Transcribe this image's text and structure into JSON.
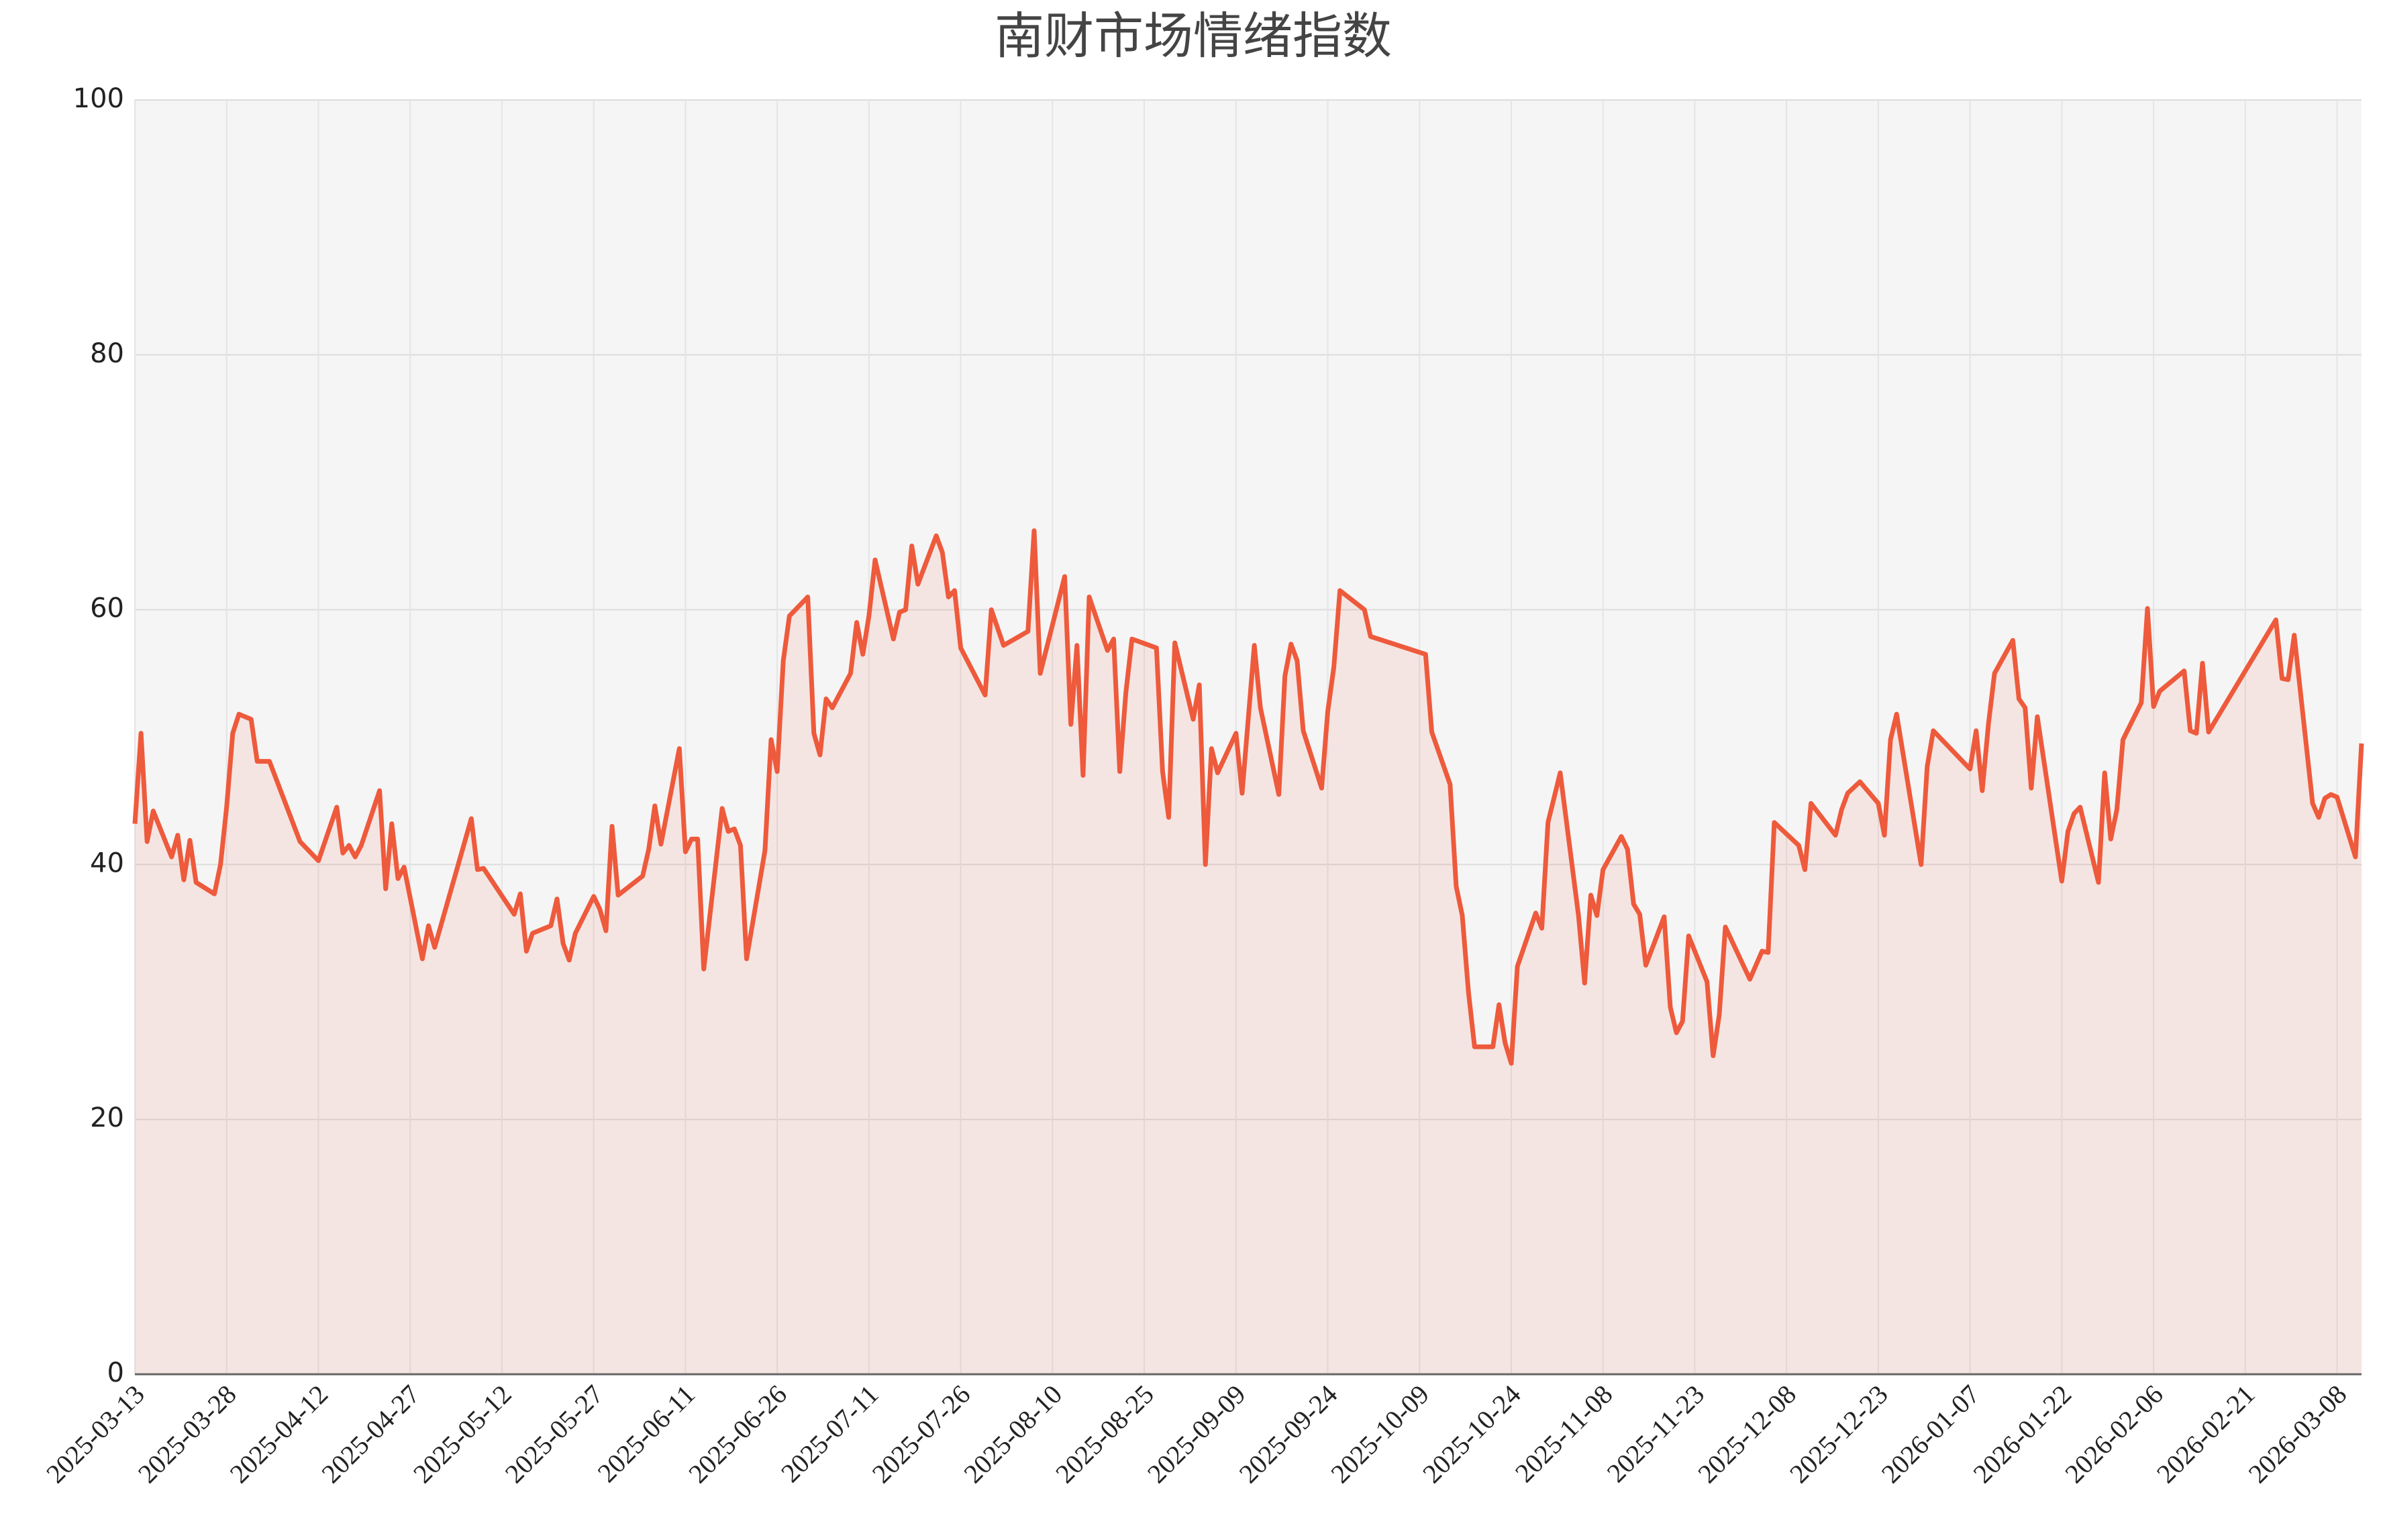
{
  "chart_data": {
    "type": "line",
    "title": "南财市场情绪指数",
    "x": [
      "2025-03-13",
      "2025-03-14",
      "2025-03-15",
      "2025-03-16",
      "2025-03-19",
      "2025-03-20",
      "2025-03-21",
      "2025-03-22",
      "2025-03-23",
      "2025-03-26",
      "2025-03-27",
      "2025-03-28",
      "2025-03-29",
      "2025-03-30",
      "2025-04-01",
      "2025-04-02",
      "2025-04-04",
      "2025-04-09",
      "2025-04-12",
      "2025-04-15",
      "2025-04-16",
      "2025-04-17",
      "2025-04-18",
      "2025-04-19",
      "2025-04-22",
      "2025-04-23",
      "2025-04-24",
      "2025-04-25",
      "2025-04-26",
      "2025-04-29",
      "2025-04-30",
      "2025-05-01",
      "2025-05-07",
      "2025-05-08",
      "2025-05-09",
      "2025-05-14",
      "2025-05-15",
      "2025-05-16",
      "2025-05-17",
      "2025-05-20",
      "2025-05-21",
      "2025-05-22",
      "2025-05-23",
      "2025-05-24",
      "2025-05-27",
      "2025-05-28",
      "2025-05-29",
      "2025-05-30",
      "2025-05-31",
      "2025-06-04",
      "2025-06-05",
      "2025-06-06",
      "2025-06-07",
      "2025-06-10",
      "2025-06-11",
      "2025-06-12",
      "2025-06-13",
      "2025-06-14",
      "2025-06-17",
      "2025-06-18",
      "2025-06-19",
      "2025-06-20",
      "2025-06-21",
      "2025-06-24",
      "2025-06-25",
      "2025-06-26",
      "2025-06-27",
      "2025-06-28",
      "2025-07-01",
      "2025-07-02",
      "2025-07-03",
      "2025-07-04",
      "2025-07-05",
      "2025-07-08",
      "2025-07-09",
      "2025-07-10",
      "2025-07-11",
      "2025-07-12",
      "2025-07-15",
      "2025-07-16",
      "2025-07-17",
      "2025-07-18",
      "2025-07-19",
      "2025-07-22",
      "2025-07-23",
      "2025-07-24",
      "2025-07-25",
      "2025-07-26",
      "2025-07-30",
      "2025-07-31",
      "2025-08-02",
      "2025-08-06",
      "2025-08-07",
      "2025-08-08",
      "2025-08-12",
      "2025-08-13",
      "2025-08-14",
      "2025-08-15",
      "2025-08-16",
      "2025-08-19",
      "2025-08-20",
      "2025-08-21",
      "2025-08-22",
      "2025-08-23",
      "2025-08-27",
      "2025-08-28",
      "2025-08-29",
      "2025-08-30",
      "2025-09-02",
      "2025-09-03",
      "2025-09-04",
      "2025-09-05",
      "2025-09-06",
      "2025-09-09",
      "2025-09-10",
      "2025-09-12",
      "2025-09-13",
      "2025-09-16",
      "2025-09-17",
      "2025-09-18",
      "2025-09-19",
      "2025-09-20",
      "2025-09-23",
      "2025-09-24",
      "2025-09-25",
      "2025-09-26",
      "2025-09-30",
      "2025-10-01",
      "2025-10-10",
      "2025-10-11",
      "2025-10-14",
      "2025-10-15",
      "2025-10-16",
      "2025-10-17",
      "2025-10-18",
      "2025-10-21",
      "2025-10-22",
      "2025-10-23",
      "2025-10-24",
      "2025-10-25",
      "2025-10-28",
      "2025-10-29",
      "2025-10-30",
      "2025-11-01",
      "2025-11-04",
      "2025-11-05",
      "2025-11-06",
      "2025-11-07",
      "2025-11-08",
      "2025-11-11",
      "2025-11-12",
      "2025-11-13",
      "2025-11-14",
      "2025-11-15",
      "2025-11-18",
      "2025-11-19",
      "2025-11-20",
      "2025-11-21",
      "2025-11-22",
      "2025-11-25",
      "2025-11-26",
      "2025-11-27",
      "2025-11-28",
      "2025-12-02",
      "2025-12-04",
      "2025-12-05",
      "2025-12-06",
      "2025-12-10",
      "2025-12-11",
      "2025-12-12",
      "2025-12-16",
      "2025-12-17",
      "2025-12-18",
      "2025-12-20",
      "2025-12-23",
      "2025-12-24",
      "2025-12-25",
      "2025-12-26",
      "2025-12-30",
      "2025-12-31",
      "2026-01-01",
      "2026-01-07",
      "2026-01-08",
      "2026-01-09",
      "2026-01-10",
      "2026-01-11",
      "2026-01-14",
      "2026-01-15",
      "2026-01-16",
      "2026-01-17",
      "2026-01-18",
      "2026-01-22",
      "2026-01-23",
      "2026-01-24",
      "2026-01-25",
      "2026-01-28",
      "2026-01-29",
      "2026-01-30",
      "2026-01-31",
      "2026-02-01",
      "2026-02-04",
      "2026-02-05",
      "2026-02-06",
      "2026-02-07",
      "2026-02-11",
      "2026-02-12",
      "2026-02-13",
      "2026-02-14",
      "2026-02-15",
      "2026-02-26",
      "2026-02-27",
      "2026-02-28",
      "2026-03-01",
      "2026-03-04",
      "2026-03-05",
      "2026-03-06",
      "2026-03-07",
      "2026-03-08",
      "2026-03-11",
      "2026-03-12"
    ],
    "values": [
      43.2,
      50.3,
      41.8,
      44.2,
      40.6,
      42.3,
      38.8,
      41.9,
      38.6,
      37.7,
      40.0,
      44.5,
      50.3,
      51.8,
      51.4,
      48.1,
      48.1,
      41.8,
      40.3,
      44.5,
      40.9,
      41.5,
      40.6,
      41.5,
      45.8,
      38.1,
      43.2,
      38.9,
      39.8,
      32.6,
      35.2,
      33.5,
      43.6,
      39.6,
      39.7,
      36.1,
      37.7,
      33.2,
      34.6,
      35.2,
      37.3,
      33.8,
      32.5,
      34.6,
      37.5,
      36.5,
      34.8,
      43.0,
      37.6,
      39.1,
      41.2,
      44.6,
      41.6,
      49.1,
      41.0,
      42.0,
      42.0,
      31.8,
      44.4,
      42.6,
      42.8,
      41.5,
      32.6,
      41.1,
      49.8,
      47.3,
      56.0,
      59.5,
      61.0,
      50.3,
      48.6,
      53.0,
      52.3,
      55.0,
      59.0,
      56.5,
      59.5,
      63.9,
      57.7,
      59.8,
      60.0,
      65.0,
      62.0,
      65.8,
      64.5,
      61.0,
      61.5,
      57.0,
      53.3,
      60.0,
      57.2,
      58.3,
      66.2,
      55.0,
      62.6,
      51.0,
      57.2,
      47.0,
      61.0,
      56.8,
      57.7,
      47.3,
      53.5,
      57.7,
      57.0,
      47.3,
      43.7,
      57.4,
      51.4,
      54.1,
      40.0,
      49.1,
      47.2,
      50.3,
      45.6,
      57.2,
      52.3,
      45.5,
      54.8,
      57.3,
      56.0,
      50.5,
      46.0,
      52.0,
      55.5,
      61.5,
      60.0,
      57.9,
      56.5,
      50.4,
      46.3,
      38.3,
      36.0,
      30.0,
      25.7,
      25.7,
      29.0,
      26.0,
      24.4,
      32.0,
      36.2,
      35.0,
      43.3,
      47.2,
      36.0,
      30.7,
      37.6,
      36.0,
      39.6,
      42.2,
      41.2,
      36.9,
      36.1,
      32.1,
      35.9,
      28.8,
      26.8,
      27.7,
      34.4,
      30.8,
      25.0,
      28.2,
      35.1,
      31.0,
      33.2,
      33.1,
      43.3,
      41.5,
      39.6,
      44.8,
      42.3,
      44.3,
      45.6,
      46.5,
      44.8,
      42.3,
      49.8,
      51.8,
      40.0,
      47.7,
      50.5,
      47.5,
      50.5,
      45.8,
      51.0,
      55.0,
      57.6,
      53.0,
      52.3,
      46.0,
      51.6,
      38.7,
      42.6,
      44.0,
      44.5,
      38.6,
      47.2,
      42.0,
      44.3,
      49.8,
      52.7,
      60.1,
      52.4,
      53.6,
      55.2,
      50.5,
      50.3,
      55.8,
      50.4,
      59.2,
      54.6,
      54.5,
      58.0,
      44.8,
      43.7,
      45.2,
      45.5,
      45.3,
      40.6,
      49.5
    ],
    "color": "#ee5a3c",
    "xlim": [
      "2025-03-13",
      "2026-03-12"
    ],
    "xticks": [
      "2025-03-13",
      "2025-03-28",
      "2025-04-12",
      "2025-04-27",
      "2025-05-12",
      "2025-05-27",
      "2025-06-11",
      "2025-06-26",
      "2025-07-11",
      "2025-07-26",
      "2025-08-10",
      "2025-08-25",
      "2025-09-09",
      "2025-09-24",
      "2025-10-09",
      "2025-10-24",
      "2025-11-08",
      "2025-11-23",
      "2025-12-08",
      "2025-12-23",
      "2026-01-07",
      "2026-01-22",
      "2026-02-06",
      "2026-02-21",
      "2026-03-08"
    ],
    "ylim": [
      0,
      100
    ],
    "yticks": [
      0,
      20,
      40,
      60,
      80,
      100
    ],
    "grid": true
  }
}
